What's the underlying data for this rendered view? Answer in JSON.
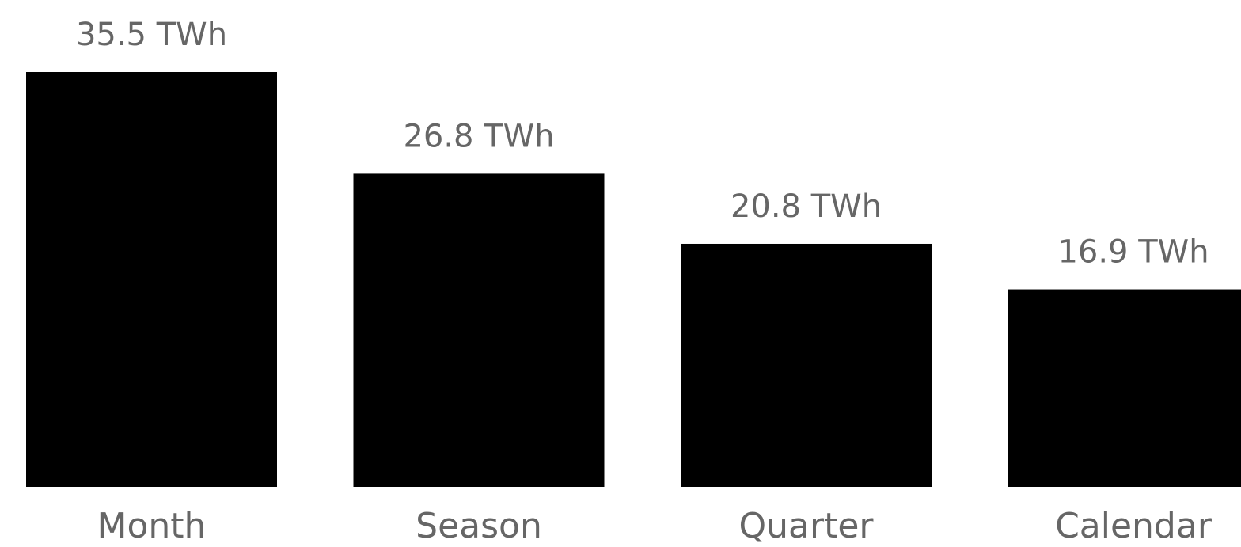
{
  "chart_data": {
    "type": "bar",
    "categories": [
      "Month",
      "Season",
      "Quarter",
      "Calendar"
    ],
    "values": [
      35.5,
      26.8,
      20.8,
      16.9
    ],
    "value_labels": [
      "35.5 TWh",
      "26.8 TWh",
      "20.8 TWh",
      "16.9 TWh"
    ],
    "unit": "TWh",
    "title": "",
    "xlabel": "",
    "ylabel": "",
    "ylim": [
      0,
      35.5
    ],
    "grid": false,
    "bar_color": "#000000",
    "label_color": "#666666"
  }
}
